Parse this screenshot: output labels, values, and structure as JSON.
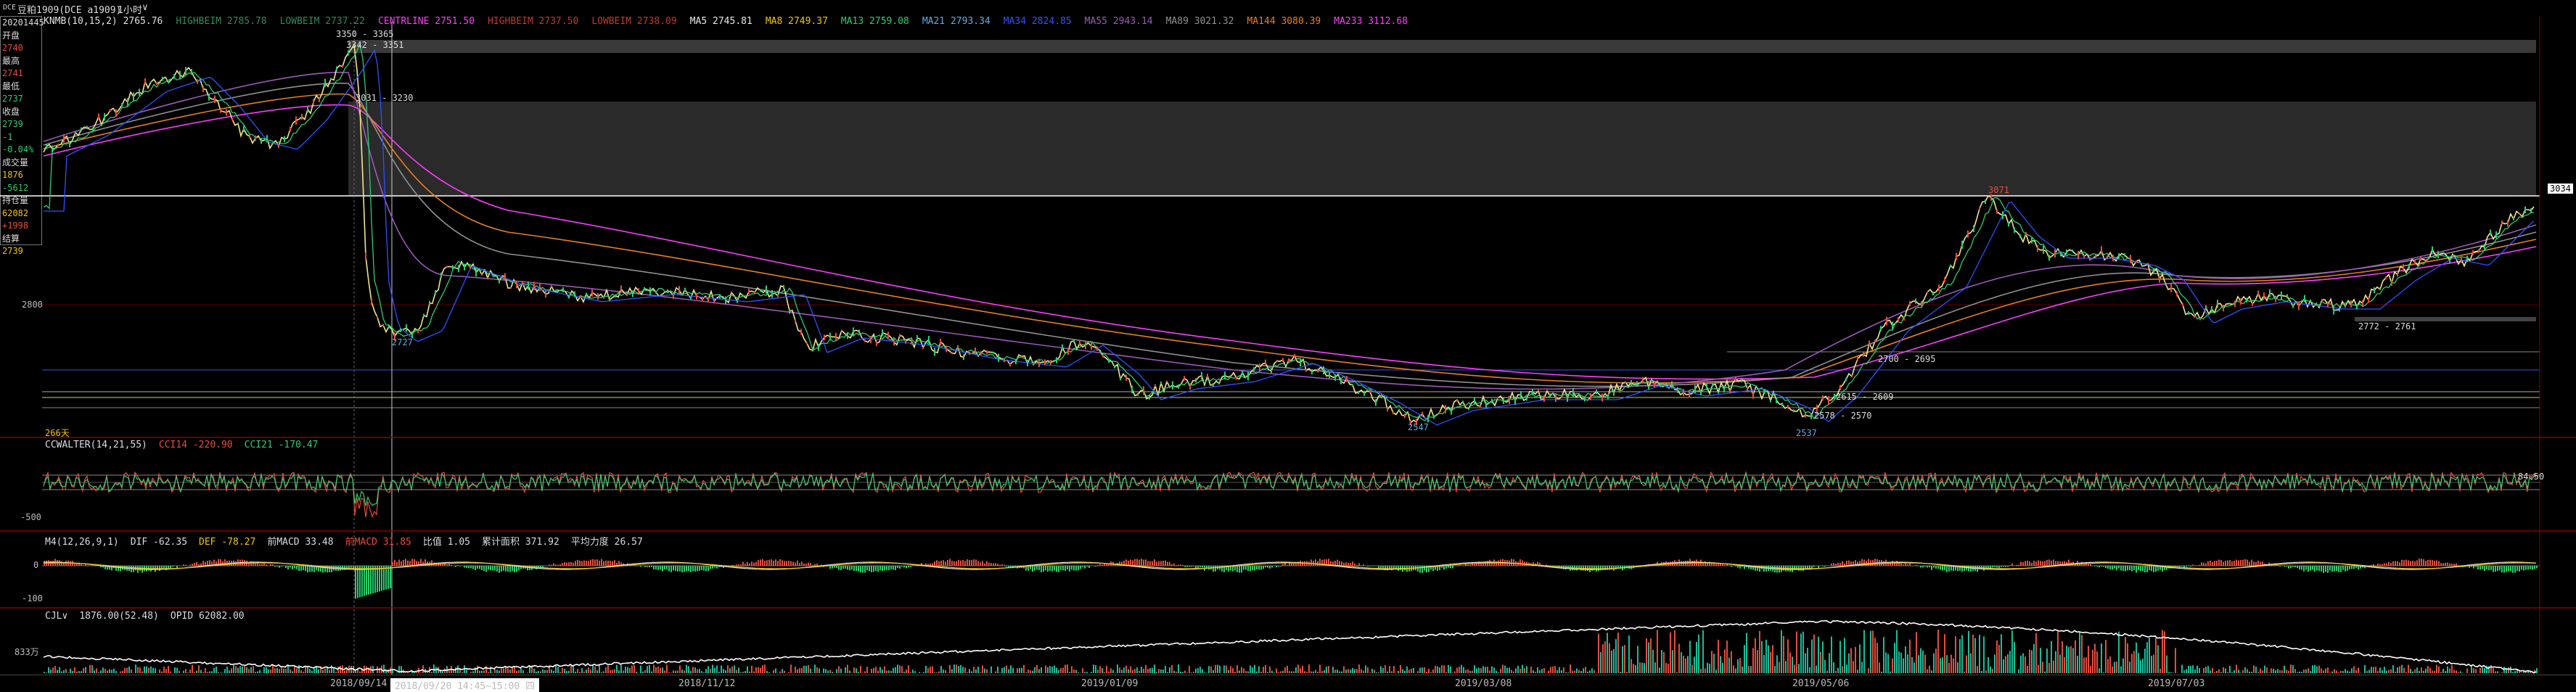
{
  "titlebar": {
    "code": "DCE",
    "contract_label": "豆粕1909(DCE a1909)",
    "period": "1小时",
    "period_caret": "∨"
  },
  "ma_line": [
    {
      "text": "KNMB(10,15,2) 2765.76",
      "color": "#e0e0e0"
    },
    {
      "text": "HIGHBEIM 2785.78",
      "color": "#2e8b57"
    },
    {
      "text": "LOWBEIM 2737.22",
      "color": "#2e8b57"
    },
    {
      "text": "CENTRLINE 2751.50",
      "color": "#ff3cff"
    },
    {
      "text": "HIGHBEIM 2737.50",
      "color": "#c0392b"
    },
    {
      "text": "LOWBEIM 2738.09",
      "color": "#c0392b"
    },
    {
      "text": "MA5 2745.81",
      "color": "#e8e8e8"
    },
    {
      "text": "MA8 2749.37",
      "color": "#f1c40f"
    },
    {
      "text": "MA13 2759.08",
      "color": "#2ecc71"
    },
    {
      "text": "MA21 2793.34",
      "color": "#5dade2"
    },
    {
      "text": "MA34 2824.85",
      "color": "#3050ff"
    },
    {
      "text": "MA55 2943.14",
      "color": "#9b59b6"
    },
    {
      "text": "MA89 3021.32",
      "color": "#909090"
    },
    {
      "text": "MA144 3080.39",
      "color": "#e67e22"
    },
    {
      "text": "MA233 3112.68",
      "color": "#ff3cff"
    }
  ],
  "sidebox": [
    {
      "text": "20201445",
      "color": "#dcdcdc"
    },
    {
      "text": "开盘",
      "color": "#dcdcdc"
    },
    {
      "text": "2740",
      "color": "#e74c3c"
    },
    {
      "text": "最高",
      "color": "#dcdcdc"
    },
    {
      "text": "2741",
      "color": "#e74c3c"
    },
    {
      "text": "最低",
      "color": "#dcdcdc"
    },
    {
      "text": "2737",
      "color": "#2ecc71"
    },
    {
      "text": "收盘",
      "color": "#dcdcdc"
    },
    {
      "text": "2739",
      "color": "#2ecc71"
    },
    {
      "text": "-1",
      "color": "#2ecc71"
    },
    {
      "text": "-0.04%",
      "color": "#2ecc71"
    },
    {
      "text": "成交量",
      "color": "#dcdcdc"
    },
    {
      "text": "1876",
      "color": "#f1c40f"
    },
    {
      "text": "-5612",
      "color": "#2ecc71"
    },
    {
      "text": "持仓量",
      "color": "#dcdcdc"
    },
    {
      "text": "62082",
      "color": "#f1c40f"
    },
    {
      "text": "+1998",
      "color": "#e74c3c"
    },
    {
      "text": "结算",
      "color": "#dcdcdc"
    },
    {
      "text": "2739",
      "color": "#f1c40f"
    }
  ],
  "price_axis": {
    "label_2800": "2800",
    "right_flag": "3034"
  },
  "annotations": {
    "peak_top": "3350 - 3365",
    "peak_sub": "3342 - 3351",
    "zone": "3031 - 3230",
    "low_2727": "2727",
    "low_2547": "2547",
    "low_2537": "2537",
    "r_2700": "2700 - 2695",
    "r_2615": "2615 - 2609",
    "r_2578": "2578 - 2570",
    "r_2772": "2772 - 2761",
    "high_3071": "3071",
    "days": "266天"
  },
  "ccw_panel": {
    "title": [
      {
        "text": "CCWALTER(14,21,55)",
        "color": "#dcdcdc"
      },
      {
        "text": "CCI14 -220.90",
        "color": "#e74c3c"
      },
      {
        "text": "CCI21 -170.47",
        "color": "#2ecc71"
      }
    ],
    "axis_top": "",
    "axis_low": "-500",
    "right_value": "84.50"
  },
  "macd_panel": {
    "title": [
      {
        "text": "M4(12,26,9,1)",
        "color": "#dcdcdc"
      },
      {
        "text": "DIF -62.35",
        "color": "#dcdcdc"
      },
      {
        "text": "DEF -78.27",
        "color": "#f1c40f"
      },
      {
        "text": "前MACD 33.48",
        "color": "#dcdcdc"
      },
      {
        "text": "前MACD 31.85",
        "color": "#e74c3c"
      },
      {
        "text": "比值 1.05",
        "color": "#dcdcdc"
      },
      {
        "text": "累计面积 371.92",
        "color": "#dcdcdc"
      },
      {
        "text": "平均力度 26.57",
        "color": "#dcdcdc"
      }
    ],
    "axis_0": "0",
    "axis_low": "-100",
    "axis_low2": "-100"
  },
  "vol_panel": {
    "title": [
      {
        "text": "CJL∨",
        "color": "#dcdcdc"
      },
      {
        "text": "1876.00(52.48)",
        "color": "#dcdcdc"
      },
      {
        "text": "OPID 62082.00",
        "color": "#dcdcdc"
      }
    ],
    "axis": "833万"
  },
  "datebar": {
    "d1": "2018/09/14",
    "tooltip": "2018/09/20 14:45~15:00 四",
    "d2": "2018/11/12",
    "d3": "2019/01/09",
    "d4": "2019/03/08",
    "d5": "2019/05/06",
    "d6": "2019/07/03"
  },
  "colors": {
    "bg": "#000000",
    "up": "#e74c3c",
    "down": "#2ecc71",
    "ma233": "#ff3cff",
    "hline_red": "#8b0000",
    "hline_blue": "#3050ff",
    "hline_white": "#ffffff"
  }
}
